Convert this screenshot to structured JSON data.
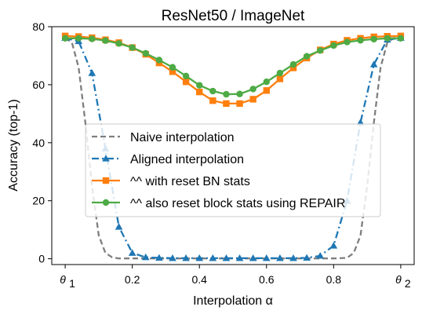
{
  "chart_data": {
    "type": "line",
    "title": "ResNet50 / ImageNet",
    "xlabel": "Interpolation α",
    "ylabel": "Accuracy (top-1)",
    "xlim": [
      -0.04,
      1.04
    ],
    "ylim": [
      -2,
      80
    ],
    "x_ticks": [
      {
        "value": 0.0,
        "label": "θ",
        "sub": "1"
      },
      {
        "value": 0.2,
        "label": "0.2"
      },
      {
        "value": 0.4,
        "label": "0.4"
      },
      {
        "value": 0.6,
        "label": "0.6"
      },
      {
        "value": 0.8,
        "label": "0.8"
      },
      {
        "value": 1.0,
        "label": "θ",
        "sub": "2"
      }
    ],
    "y_ticks": [
      0,
      20,
      40,
      60,
      80
    ],
    "grid": false,
    "legend_position": "center-left",
    "series": [
      {
        "name": "Naive interpolation",
        "color": "#7f7f7f",
        "dash": "dashed",
        "marker": "none",
        "x": [
          0.0,
          0.02,
          0.04,
          0.06,
          0.08,
          0.1,
          0.12,
          0.14,
          0.16,
          0.2,
          0.3,
          0.4,
          0.5,
          0.6,
          0.7,
          0.8,
          0.84,
          0.86,
          0.88,
          0.9,
          0.92,
          0.94,
          0.96,
          0.98,
          1.0
        ],
        "y": [
          76.1,
          74.5,
          66,
          47,
          25,
          8,
          2,
          0.5,
          0.1,
          0.1,
          0.1,
          0.1,
          0.1,
          0.1,
          0.1,
          0.1,
          0.3,
          2,
          8,
          25,
          47,
          66,
          74.5,
          76.1,
          76.1
        ]
      },
      {
        "name": "Aligned interpolation",
        "color": "#1f77b4",
        "dash": "dashdot",
        "marker": "triangle",
        "x": [
          0.0,
          0.04,
          0.08,
          0.12,
          0.16,
          0.2,
          0.24,
          0.28,
          0.32,
          0.36,
          0.4,
          0.44,
          0.48,
          0.52,
          0.56,
          0.6,
          0.64,
          0.68,
          0.72,
          0.76,
          0.8,
          0.84,
          0.88,
          0.92,
          0.96,
          1.0
        ],
        "y": [
          76.1,
          75.0,
          64.0,
          38.0,
          11.0,
          2.0,
          0.5,
          0.3,
          0.2,
          0.2,
          0.2,
          0.2,
          0.2,
          0.2,
          0.2,
          0.2,
          0.2,
          0.2,
          0.3,
          1.0,
          4.5,
          20.0,
          47.0,
          67.0,
          75.5,
          76.1
        ]
      },
      {
        "name": "^^ with reset BN stats",
        "color": "#ff7f0e",
        "dash": "solid",
        "marker": "square",
        "x": [
          0.0,
          0.04,
          0.08,
          0.12,
          0.16,
          0.2,
          0.24,
          0.28,
          0.32,
          0.36,
          0.4,
          0.44,
          0.48,
          0.52,
          0.56,
          0.6,
          0.64,
          0.68,
          0.72,
          0.76,
          0.8,
          0.84,
          0.88,
          0.92,
          0.96,
          1.0
        ],
        "y": [
          76.8,
          76.6,
          76.2,
          75.5,
          74.5,
          72.8,
          70.5,
          67.5,
          64.5,
          61.0,
          57.5,
          54.5,
          53.5,
          53.5,
          55.0,
          58.0,
          62.0,
          65.8,
          69.2,
          72.0,
          74.0,
          75.3,
          76.0,
          76.5,
          76.7,
          76.8
        ]
      },
      {
        "name": "^^ also reset block stats using REPAIR",
        "color": "#4daa44",
        "dash": "solid",
        "marker": "circle",
        "x": [
          0.0,
          0.04,
          0.08,
          0.12,
          0.16,
          0.2,
          0.24,
          0.28,
          0.32,
          0.36,
          0.4,
          0.44,
          0.48,
          0.52,
          0.56,
          0.6,
          0.64,
          0.68,
          0.72,
          0.76,
          0.8,
          0.84,
          0.88,
          0.92,
          0.96,
          1.0
        ],
        "y": [
          76.0,
          76.0,
          75.8,
          75.2,
          74.2,
          72.8,
          70.8,
          68.5,
          66.0,
          63.0,
          59.8,
          57.8,
          56.7,
          56.8,
          58.5,
          61.0,
          64.0,
          67.0,
          69.8,
          71.8,
          73.5,
          74.7,
          75.3,
          75.7,
          76.0,
          76.0
        ]
      }
    ]
  }
}
